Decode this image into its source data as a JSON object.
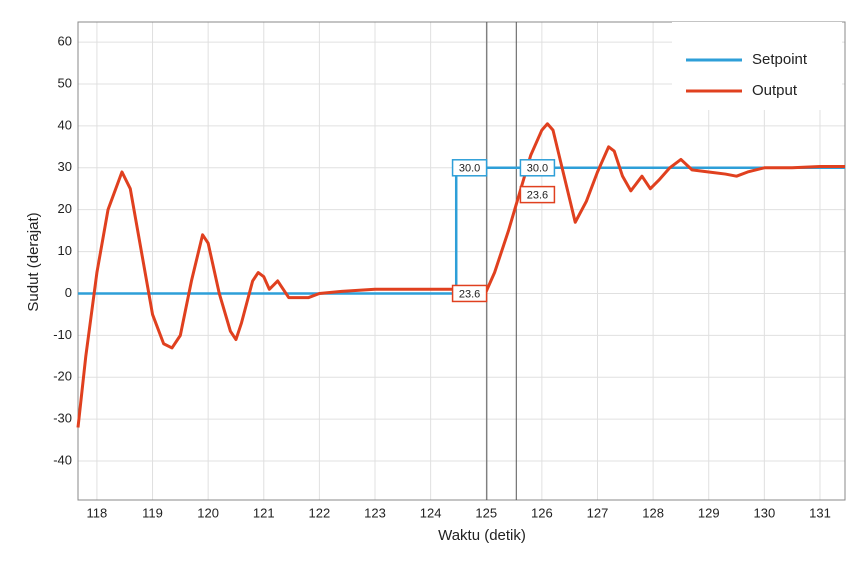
{
  "chart_data": {
    "type": "line",
    "x_label": "Waktu (detik)",
    "y_label": "Sudut (derajat)",
    "xlim": [
      117.66,
      131.45
    ],
    "ylim": [
      -49.3,
      64.8
    ],
    "xticks": [
      118,
      119,
      120,
      121,
      122,
      123,
      124,
      125,
      126,
      127,
      128,
      129,
      130,
      131
    ],
    "yticks": [
      -40,
      -30,
      -20,
      -10,
      0,
      10,
      20,
      30,
      40,
      50,
      60
    ],
    "grid": true,
    "legend": "upper right",
    "series": [
      {
        "name": "Setpoint",
        "color": "#2e9fd8",
        "x": [
          117.66,
          124.46,
          124.46,
          131.45
        ],
        "values": [
          0,
          0,
          30,
          30
        ]
      },
      {
        "name": "Output",
        "color": "#e0401f",
        "x": [
          117.66,
          117.8,
          118.0,
          118.2,
          118.45,
          118.6,
          118.8,
          119.0,
          119.2,
          119.35,
          119.5,
          119.7,
          119.9,
          120.0,
          120.2,
          120.4,
          120.5,
          120.6,
          120.8,
          120.9,
          121.0,
          121.1,
          121.25,
          121.35,
          121.45,
          121.8,
          122.0,
          122.4,
          123.0,
          124.0,
          124.6,
          125.0,
          125.15,
          125.4,
          125.6,
          125.8,
          126.0,
          126.1,
          126.2,
          126.4,
          126.6,
          126.8,
          127.0,
          127.2,
          127.3,
          127.45,
          127.6,
          127.8,
          127.95,
          128.1,
          128.3,
          128.5,
          128.7,
          129.0,
          129.3,
          129.5,
          129.7,
          130.0,
          130.5,
          131.0,
          131.45
        ],
        "values": [
          -32,
          -15,
          5,
          20,
          29,
          25,
          10,
          -5,
          -12,
          -13,
          -10,
          3,
          14,
          12,
          0,
          -9,
          -11,
          -7,
          3,
          5,
          4,
          1,
          3,
          1,
          -1,
          -1,
          0,
          0.5,
          1,
          1,
          1,
          0.5,
          5,
          15,
          24,
          33,
          39,
          40.5,
          39,
          28,
          17,
          22,
          29,
          35,
          34,
          28,
          24.5,
          28,
          25,
          27,
          30,
          32,
          29.5,
          29,
          28.5,
          28,
          29,
          30,
          30,
          30.3,
          30.3
        ]
      }
    ],
    "cursors": [
      125.01,
      125.54
    ],
    "annotations": [
      {
        "text": "30.0",
        "x": 124.7,
        "y": 30,
        "color": "#2e9fd8"
      },
      {
        "text": "23.6",
        "x": 124.7,
        "y": 0,
        "color": "#e0401f"
      },
      {
        "text": "30.0",
        "x": 125.92,
        "y": 30,
        "color": "#2e9fd8"
      },
      {
        "text": "23.6",
        "x": 125.92,
        "y": 23.6,
        "color": "#e0401f"
      }
    ]
  }
}
